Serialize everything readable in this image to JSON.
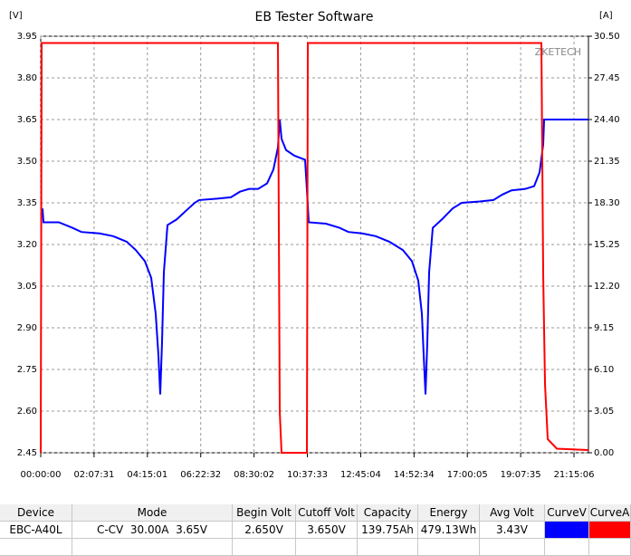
{
  "chart_data": {
    "type": "line",
    "title": "EB Tester Software",
    "y_unit": "[V]",
    "y2_unit": "[A]",
    "watermark": "ZKETECH",
    "grid": true,
    "xlim": [
      0,
      78580
    ],
    "xticks": [
      {
        "value": 0,
        "label": "00:00:00"
      },
      {
        "value": 7651,
        "label": "02:07:31"
      },
      {
        "value": 15301,
        "label": "04:15:01"
      },
      {
        "value": 22952,
        "label": "06:22:32"
      },
      {
        "value": 30602,
        "label": "08:30:02"
      },
      {
        "value": 38253,
        "label": "10:37:33"
      },
      {
        "value": 45904,
        "label": "12:45:04"
      },
      {
        "value": 53554,
        "label": "14:52:34"
      },
      {
        "value": 61205,
        "label": "17:00:05"
      },
      {
        "value": 68855,
        "label": "19:07:35"
      },
      {
        "value": 76506,
        "label": "21:15:06"
      }
    ],
    "ylim": [
      2.45,
      3.95
    ],
    "yticks": [
      2.45,
      {
        "value": 2.6,
        "label": "2.60"
      },
      2.75,
      {
        "value": 2.9,
        "label": "2.90"
      },
      3.05,
      {
        "value": 3.2,
        "label": "3.20"
      },
      3.35,
      {
        "value": 3.5,
        "label": "3.50"
      },
      3.65,
      {
        "value": 3.8,
        "label": "3.80"
      },
      3.95
    ],
    "y2lim": [
      0,
      30.5
    ],
    "y2ticks": [
      {
        "value": 0,
        "label": "0.00"
      },
      3.05,
      {
        "value": 6.1,
        "label": "6.10"
      },
      9.15,
      {
        "value": 12.2,
        "label": "12.20"
      },
      {
        "value": 15.25,
        "label": "15.25"
      },
      {
        "value": 18.3,
        "label": "18.30"
      },
      21.35,
      {
        "value": 24.4,
        "label": "24.40"
      },
      27.45,
      {
        "value": 30.5,
        "label": "30.50"
      }
    ],
    "series": [
      {
        "color": "#0000ff",
        "x": [
          260,
          390,
          2598,
          4546,
          5845,
          8443,
          10391,
          12340,
          13638,
          14937,
          15847,
          16496,
          16886,
          17145,
          17405,
          17665,
          18185,
          19484,
          20782,
          22081,
          22731,
          25329,
          27277,
          28576,
          29875,
          31174,
          32473,
          33382,
          34031,
          34291,
          34551,
          35200,
          36369,
          37928,
          38318,
          38448,
          40916,
          42864,
          44163,
          46111,
          48059,
          50008,
          51956,
          53255,
          54164,
          54684,
          54944,
          55203,
          55463,
          55723,
          56243,
          57542,
          59100,
          60399,
          62997,
          64945,
          66244,
          67543,
          69491,
          70790,
          71570,
          72089,
          72219,
          78580
        ],
        "values": [
          3.33,
          3.28,
          3.28,
          3.26,
          3.245,
          3.24,
          3.23,
          3.21,
          3.18,
          3.14,
          3.08,
          2.95,
          2.8,
          2.66,
          2.85,
          3.1,
          3.27,
          3.29,
          3.32,
          3.35,
          3.36,
          3.365,
          3.37,
          3.39,
          3.4,
          3.4,
          3.42,
          3.47,
          3.55,
          3.65,
          3.58,
          3.54,
          3.52,
          3.505,
          3.34,
          3.28,
          3.275,
          3.26,
          3.245,
          3.24,
          3.23,
          3.21,
          3.18,
          3.14,
          3.07,
          2.95,
          2.8,
          2.66,
          2.85,
          3.1,
          3.26,
          3.29,
          3.33,
          3.35,
          3.355,
          3.36,
          3.38,
          3.395,
          3.4,
          3.41,
          3.46,
          3.56,
          3.65,
          3.65
        ]
      },
      {
        "color": "#ff0000",
        "axis": "y2",
        "x": [
          0,
          130,
          34031,
          34291,
          34551,
          38188,
          38318,
          71829,
          72089,
          72349,
          72738,
          74037,
          78580
        ],
        "values": [
          0,
          30,
          30,
          3,
          0,
          0,
          30,
          30,
          13,
          5,
          1,
          0.3,
          0.2
        ]
      }
    ]
  },
  "table": {
    "header": [
      "Device",
      "Mode",
      "Begin Volt",
      "Cutoff Volt",
      "Capacity",
      "Energy",
      "Avg Volt",
      "CurveV",
      "CurveA"
    ],
    "rows": [
      [
        "EBC-A40L",
        "C-CV  30.00A  3.65V",
        "2.650V",
        "3.650V",
        "139.75Ah",
        "479.13Wh",
        "3.43V"
      ]
    ]
  }
}
